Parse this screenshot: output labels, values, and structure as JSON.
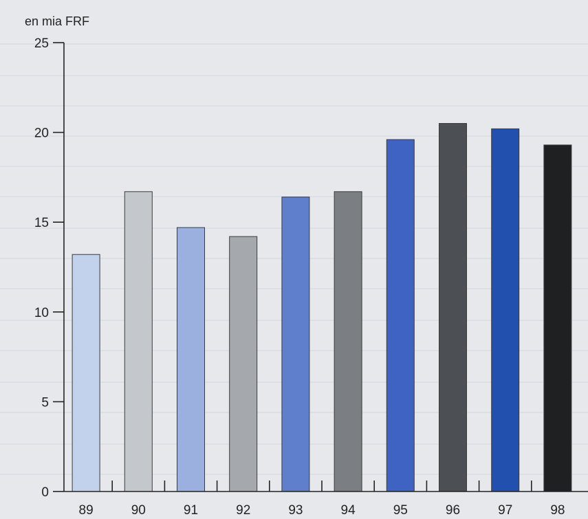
{
  "chart_data": {
    "type": "bar",
    "unit_label": "en mia FRF",
    "categories": [
      "89",
      "90",
      "91",
      "92",
      "93",
      "94",
      "95",
      "96",
      "97",
      "98"
    ],
    "values": [
      13.2,
      16.7,
      14.7,
      14.2,
      16.4,
      16.7,
      19.6,
      20.5,
      20.2,
      19.3
    ],
    "bar_colors": [
      "#c2d1ec",
      "#c4c7cc",
      "#9bb0df",
      "#a5a8ad",
      "#5f7fcc",
      "#7b7e82",
      "#3f63c2",
      "#4c4f53",
      "#2150ae",
      "#1f2022"
    ],
    "ylim": [
      0,
      25
    ],
    "yticks": [
      0,
      5,
      10,
      15,
      20,
      25
    ],
    "ytick_labels": [
      "0",
      "5",
      "10",
      "15",
      "20",
      "25"
    ],
    "title": "",
    "xlabel": "",
    "ylabel": "",
    "grid": false,
    "background_color": "#e6e8ec"
  }
}
